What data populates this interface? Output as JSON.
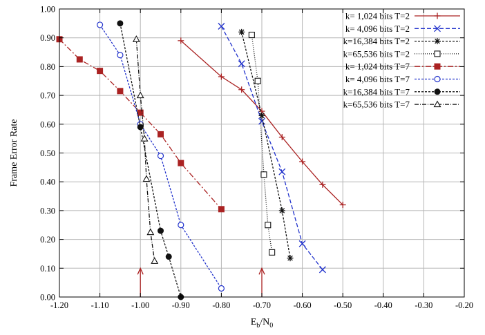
{
  "chart_data": {
    "type": "line",
    "xlabel": "E_b/N_0",
    "xlabel_parts": {
      "base": "E",
      "sub1": "b",
      "mid": "/N",
      "sub2": "0"
    },
    "ylabel": "Frame Error Rate",
    "xlim": [
      -1.2,
      -0.2
    ],
    "ylim": [
      0.0,
      1.0
    ],
    "grid": true,
    "legend_position": "top-right",
    "x_ticks": [
      -1.2,
      -1.1,
      -1.0,
      -0.9,
      -0.8,
      -0.7,
      -0.6,
      -0.5,
      -0.4,
      -0.3,
      -0.2
    ],
    "x_tick_labels": [
      "-1.20",
      "-1.10",
      "-1.00",
      "-0.90",
      "-0.80",
      "-0.70",
      "-0.60",
      "-0.50",
      "-0.40",
      "-0.30",
      "-0.20"
    ],
    "y_ticks": [
      0.0,
      0.1,
      0.2,
      0.3,
      0.4,
      0.5,
      0.6,
      0.7,
      0.8,
      0.9,
      1.0
    ],
    "y_tick_labels": [
      "0.00",
      "0.10",
      "0.20",
      "0.30",
      "0.40",
      "0.50",
      "0.60",
      "0.70",
      "0.80",
      "0.90",
      "1.00"
    ],
    "series": [
      {
        "name": "k=  1,024 bits T=2",
        "color": "#aa2222",
        "marker": "plus",
        "dash": "",
        "x": [
          -0.9,
          -0.8,
          -0.75,
          -0.7,
          -0.65,
          -0.6,
          -0.55,
          -0.5
        ],
        "y": [
          0.89,
          0.765,
          0.72,
          0.645,
          0.555,
          0.47,
          0.39,
          0.32
        ]
      },
      {
        "name": "k=  4,096 bits T=2",
        "color": "#2233cc",
        "marker": "x",
        "dash": "6,3",
        "x": [
          -0.8,
          -0.75,
          -0.7,
          -0.65,
          -0.6,
          -0.55
        ],
        "y": [
          0.94,
          0.81,
          0.61,
          0.435,
          0.185,
          0.095
        ]
      },
      {
        "name": "k=16,384 bits T=2",
        "color": "#111111",
        "marker": "star",
        "dash": "3,2",
        "x": [
          -0.75,
          -0.7,
          -0.65,
          -0.63
        ],
        "y": [
          0.92,
          0.63,
          0.3,
          0.135
        ]
      },
      {
        "name": "k=65,536 bits T=2",
        "color": "#111111",
        "marker": "square-open",
        "dash": "1,2",
        "x": [
          -0.725,
          -0.71,
          -0.695,
          -0.685,
          -0.675
        ],
        "y": [
          0.91,
          0.75,
          0.425,
          0.25,
          0.155
        ]
      },
      {
        "name": "k=  1,024 bits T=7",
        "color": "#aa2222",
        "marker": "square-filled",
        "dash": "8,3,2,3",
        "x": [
          -1.2,
          -1.15,
          -1.1,
          -1.05,
          -1.0,
          -0.95,
          -0.9,
          -0.8
        ],
        "y": [
          0.895,
          0.825,
          0.785,
          0.715,
          0.64,
          0.565,
          0.465,
          0.305
        ]
      },
      {
        "name": "k=  4,096 bits T=7",
        "color": "#2233cc",
        "marker": "circle-open",
        "dash": "3,2",
        "x": [
          -1.1,
          -1.05,
          -1.0,
          -0.95,
          -0.9,
          -0.8
        ],
        "y": [
          0.945,
          0.84,
          0.6,
          0.49,
          0.25,
          0.03
        ]
      },
      {
        "name": "k=16,384 bits T=7",
        "color": "#111111",
        "marker": "circle-filled",
        "dash": "3,2",
        "x": [
          -1.05,
          -1.0,
          -0.95,
          -0.93,
          -0.9
        ],
        "y": [
          0.95,
          0.59,
          0.23,
          0.14,
          0.0
        ]
      },
      {
        "name": "k=65,536 bits T=7",
        "color": "#111111",
        "marker": "triangle-open",
        "dash": "6,2,1,2",
        "x": [
          -1.01,
          -1.0,
          -0.99,
          -0.985,
          -0.975,
          -0.965
        ],
        "y": [
          0.895,
          0.7,
          0.55,
          0.41,
          0.225,
          0.125
        ]
      }
    ],
    "annotations": [
      {
        "type": "arrow",
        "x": -1.0,
        "y_from": 0.0,
        "y_to": 0.1,
        "color": "#aa2222"
      },
      {
        "type": "arrow",
        "x": -0.7,
        "y_from": 0.0,
        "y_to": 0.1,
        "color": "#aa2222"
      }
    ]
  }
}
